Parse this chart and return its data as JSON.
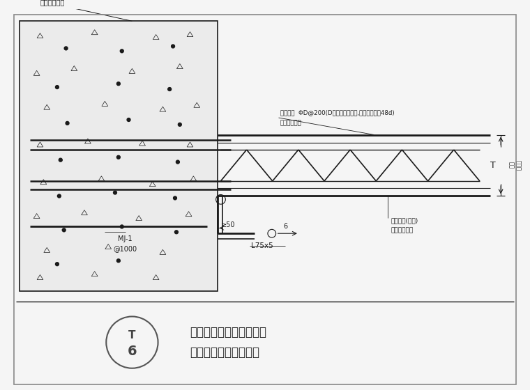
{
  "bg_color": "#f5f5f5",
  "line_color": "#1a1a1a",
  "title_line1": "楼承板与剪力墙连接节点",
  "title_line2": "钢筋桁架垂直于剪力墙",
  "label_core_wall": "核心筒剪力墙",
  "label_anchor1_line1": "拉锚钢筋  ΦD@200(D用钢筋桁架上弦,外伸长度满足48d)",
  "label_anchor1_line2": "详结构施工图",
  "label_angle": "L75x5",
  "label_ge50": "≥50",
  "label_anchor2_line1": "拉锚钢筋(如需)",
  "label_anchor2_line2": "详结构施工图",
  "label_mj": "MJ-1",
  "label_mj2": "@1000",
  "label_6": "6",
  "label_t": "T",
  "label_thickness_1": "楼承板",
  "label_thickness_2": "厚度"
}
